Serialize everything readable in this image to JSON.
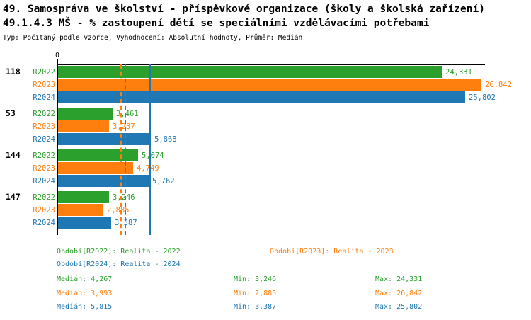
{
  "header": {
    "title_line1": "49. Samospráva ve školství - příspěvkové organizace (školy a školská zařízení)",
    "title_line2": "49.1.4.3 MŠ - % zastoupení dětí se speciálními vzdělávacími potřebami",
    "subtitle": "Typ: Počítaný podle vzorce, Vyhodnocení: Absolutní hodnoty, Průměr: Medián"
  },
  "colors": {
    "r2022": "#2ca02c",
    "r2023": "#ff7f0e",
    "r2024": "#1f77b4",
    "axis": "#000000"
  },
  "chart_data": {
    "type": "bar",
    "orientation": "horizontal",
    "x_axis": {
      "zero_label": "0",
      "min": 0,
      "max": 26842
    },
    "value_max": 26842,
    "series_labels": [
      "R2022",
      "R2023",
      "R2024"
    ],
    "categories": [
      "118",
      "53",
      "144",
      "147"
    ],
    "groups": [
      {
        "id": "118",
        "values": [
          24331,
          26842,
          25802
        ],
        "labels": [
          "24,331",
          "26,842",
          "25,802"
        ]
      },
      {
        "id": "53",
        "values": [
          3461,
          3237,
          5868
        ],
        "labels": [
          "3,461",
          "3,237",
          "5,868"
        ]
      },
      {
        "id": "144",
        "values": [
          5074,
          4749,
          5762
        ],
        "labels": [
          "5,074",
          "4,749",
          "5,762"
        ]
      },
      {
        "id": "147",
        "values": [
          3246,
          2885,
          3387
        ],
        "labels": [
          "3,246",
          "2,885",
          "3,387"
        ]
      }
    ],
    "median_lines": [
      {
        "series": "R2022",
        "value": 4267,
        "style": "dashed"
      },
      {
        "series": "R2023",
        "value": 3993,
        "style": "dashed"
      },
      {
        "series": "R2024",
        "value": 5815,
        "style": "solid"
      }
    ],
    "legend_position": "bottom",
    "grid": false
  },
  "legend": {
    "items": [
      {
        "label": "Období[R2022]: Realita - 2022"
      },
      {
        "label": "Období[R2023]: Realita - 2023"
      },
      {
        "label": "Období[R2024]: Realita - 2024"
      }
    ]
  },
  "stats": {
    "rows": [
      {
        "median": "Medián: 4,267",
        "min": "Min: 3,246",
        "max": "Max: 24,331"
      },
      {
        "median": "Medián: 3,993",
        "min": "Min: 2,885",
        "max": "Max: 26,842"
      },
      {
        "median": "Medián: 5,815",
        "min": "Min: 3,387",
        "max": "Max: 25,802"
      }
    ]
  }
}
